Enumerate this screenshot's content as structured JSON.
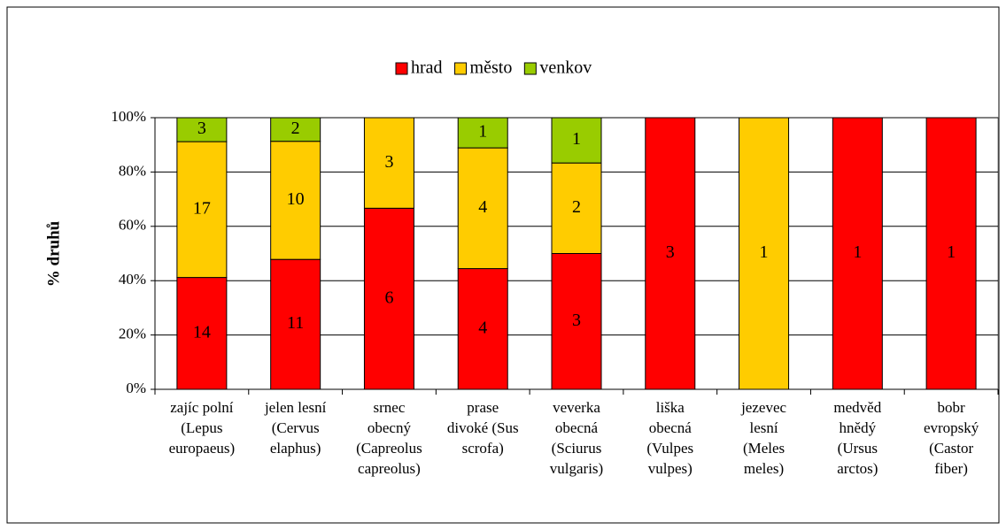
{
  "chart_data": {
    "type": "bar",
    "stacked": "percent",
    "y_label": "% druhů",
    "categories": [
      [
        "zajíc polní",
        "(Lepus",
        "europaeus)"
      ],
      [
        "jelen lesní",
        "(Cervus",
        "elaphus)"
      ],
      [
        "srnec",
        "obecný",
        "(Capreolus",
        "capreolus)"
      ],
      [
        "prase",
        "divoké (Sus",
        "scrofa)"
      ],
      [
        "veverka",
        "obecná",
        "(Sciurus",
        "vulgaris)"
      ],
      [
        "liška",
        "obecná",
        "(Vulpes",
        "vulpes)"
      ],
      [
        "jezevec",
        "lesní",
        "(Meles",
        "meles)"
      ],
      [
        "medvěd",
        "hnědý",
        "(Ursus",
        "arctos)"
      ],
      [
        "bobr",
        "evropský",
        "(Castor",
        "fiber)"
      ]
    ],
    "series": [
      {
        "name": "hrad",
        "color": "#ff0000",
        "values": [
          14,
          11,
          6,
          4,
          3,
          3,
          null,
          1,
          1
        ]
      },
      {
        "name": "město",
        "color": "#ffcc00",
        "values": [
          17,
          10,
          3,
          4,
          2,
          null,
          1,
          null,
          null
        ]
      },
      {
        "name": "venkov",
        "color": "#99cc00",
        "values": [
          3,
          2,
          null,
          1,
          1,
          null,
          null,
          null,
          null
        ]
      }
    ],
    "ylim": [
      0,
      100
    ],
    "yticks": [
      {
        "value": 0,
        "label": "0%"
      },
      {
        "value": 20,
        "label": "20%"
      },
      {
        "value": 40,
        "label": "40%"
      },
      {
        "value": 60,
        "label": "60%"
      },
      {
        "value": 80,
        "label": "80%"
      },
      {
        "value": 100,
        "label": "100%"
      }
    ],
    "grid": true,
    "legend": "top"
  }
}
